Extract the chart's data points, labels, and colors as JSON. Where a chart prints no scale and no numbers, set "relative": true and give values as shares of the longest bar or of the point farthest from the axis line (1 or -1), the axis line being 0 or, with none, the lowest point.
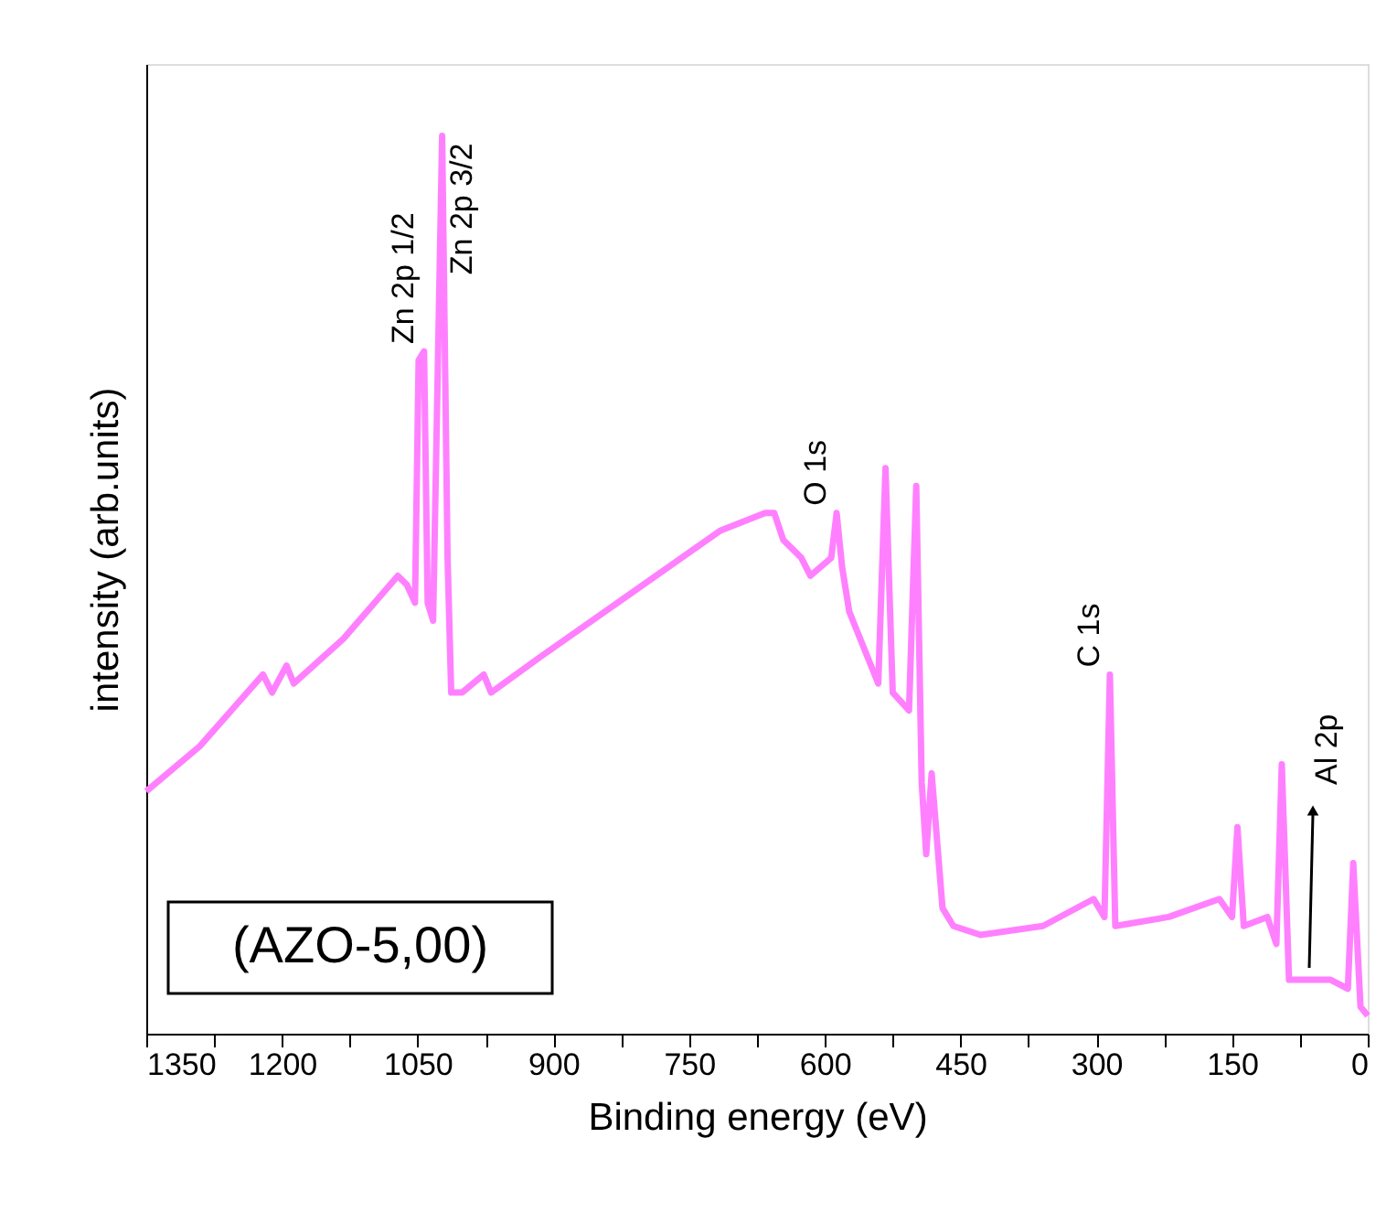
{
  "chart_data": {
    "type": "line",
    "relative": true,
    "xlabel": "Binding energy (eV)",
    "ylabel": "intensity (arb.units)",
    "xlim": [
      1350,
      0
    ],
    "xticks": [
      1350,
      {
        "value": 1275,
        "label": null
      },
      1200,
      {
        "value": 1125,
        "label": null
      },
      1050,
      {
        "value": 975,
        "label": null
      },
      900,
      {
        "value": 825,
        "label": null
      },
      750,
      {
        "value": 675,
        "label": null
      },
      600,
      {
        "value": 525,
        "label": null
      },
      450,
      {
        "value": 375,
        "label": null
      },
      300,
      {
        "value": 225,
        "label": null
      },
      150,
      {
        "value": 75,
        "label": null
      },
      0
    ],
    "tick_labels": "x",
    "grid": false,
    "marker": "none",
    "line_style": "solid",
    "series": [
      {
        "color": "#ff80ff",
        "x": [
          1350,
          1291,
          1221,
          1211,
          1195,
          1187,
          1132,
          1072,
          1062,
          1053,
          1049,
          1043,
          1039,
          1033,
          1023,
          1017,
          1013,
          1001,
          977,
          969,
          914,
          815,
          716,
          666,
          656,
          646,
          626,
          616,
          593,
          587,
          581,
          573,
          557,
          541,
          533,
          525,
          507,
          499,
          493,
          488,
          482,
          470,
          458,
          428,
          359,
          303,
          291,
          285,
          279,
          220,
          164,
          150,
          144,
          137,
          111,
          101,
          95,
          87,
          41,
          22,
          16,
          8,
          0
        ],
        "values": [
          0.27,
          0.32,
          0.4,
          0.38,
          0.41,
          0.39,
          0.44,
          0.51,
          0.5,
          0.48,
          0.75,
          0.76,
          0.48,
          0.46,
          1.0,
          0.53,
          0.38,
          0.38,
          0.4,
          0.38,
          0.42,
          0.49,
          0.56,
          0.58,
          0.58,
          0.55,
          0.53,
          0.51,
          0.53,
          0.58,
          0.52,
          0.47,
          0.43,
          0.39,
          0.63,
          0.38,
          0.36,
          0.61,
          0.28,
          0.2,
          0.29,
          0.14,
          0.12,
          0.11,
          0.12,
          0.15,
          0.13,
          0.4,
          0.12,
          0.13,
          0.15,
          0.13,
          0.23,
          0.12,
          0.13,
          0.1,
          0.3,
          0.06,
          0.06,
          0.05,
          0.19,
          0.03,
          0.02
        ]
      }
    ],
    "annotations": [
      {
        "text": "Zn 2p 1/2",
        "x": 1043,
        "y": 0.76
      },
      {
        "text": "Zn 2p 3/2",
        "x": 1023,
        "y": 1.0
      },
      {
        "text": "O 1s",
        "x": 587,
        "y": 0.58
      },
      {
        "text": "C 1s",
        "x": 285,
        "y": 0.4
      },
      "(AZO-5,00)",
      "Al 2p"
    ]
  }
}
